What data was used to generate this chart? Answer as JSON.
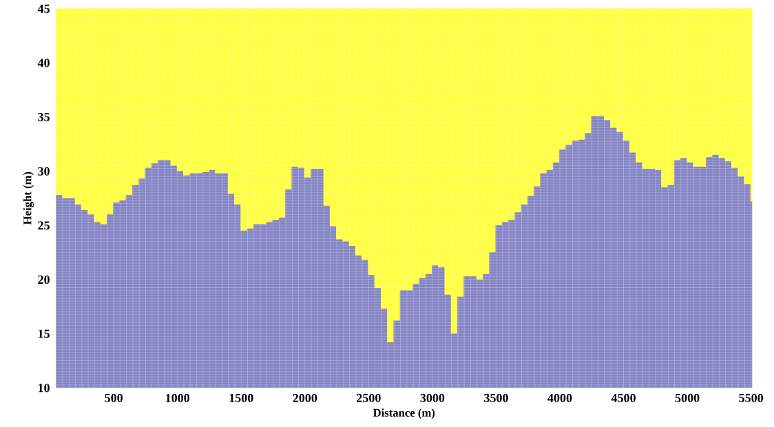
{
  "chart_data": {
    "type": "area",
    "xlabel": "Distance (m)",
    "ylabel": "Height (m)",
    "x": [
      45,
      95,
      145,
      195,
      245,
      295,
      345,
      395,
      445,
      495,
      545,
      595,
      645,
      695,
      745,
      795,
      845,
      895,
      945,
      995,
      1045,
      1095,
      1145,
      1195,
      1245,
      1295,
      1345,
      1395,
      1445,
      1495,
      1545,
      1595,
      1645,
      1695,
      1745,
      1795,
      1845,
      1895,
      1945,
      1995,
      2045,
      2095,
      2145,
      2195,
      2245,
      2295,
      2345,
      2395,
      2445,
      2495,
      2545,
      2595,
      2645,
      2695,
      2745,
      2795,
      2845,
      2895,
      2945,
      2995,
      3045,
      3095,
      3145,
      3195,
      3245,
      3295,
      3345,
      3395,
      3445,
      3495,
      3545,
      3595,
      3645,
      3695,
      3745,
      3795,
      3845,
      3895,
      3945,
      3995,
      4045,
      4095,
      4145,
      4195,
      4245,
      4295,
      4345,
      4395,
      4445,
      4495,
      4545,
      4595,
      4645,
      4695,
      4745,
      4795,
      4845,
      4895,
      4945,
      4995,
      5045,
      5095,
      5145,
      5195,
      5245,
      5295,
      5345,
      5395,
      5445,
      5495
    ],
    "series": [
      {
        "color": "#8484c4",
        "values": [
          27.8,
          27.5,
          27.5,
          26.9,
          26.4,
          26.0,
          25.3,
          25.1,
          26.0,
          27.1,
          27.3,
          27.8,
          28.7,
          29.3,
          30.3,
          30.7,
          31.0,
          31.0,
          30.5,
          30.0,
          29.6,
          29.8,
          29.8,
          29.9,
          30.1,
          29.8,
          29.8,
          27.9,
          26.9,
          24.5,
          24.7,
          25.1,
          25.1,
          25.3,
          25.5,
          25.7,
          28.3,
          30.4,
          30.3,
          29.4,
          30.2,
          30.2,
          26.8,
          24.9,
          23.7,
          23.5,
          23.1,
          22.2,
          21.8,
          20.4,
          19.2,
          17.3,
          14.2,
          16.2,
          19.0,
          19.0,
          19.6,
          20.1,
          20.5,
          21.3,
          21.1,
          18.6,
          15.0,
          18.4,
          20.3,
          20.3,
          20.0,
          20.5,
          22.5,
          25.0,
          25.3,
          25.5,
          26.2,
          26.9,
          27.7,
          28.6,
          29.8,
          30.1,
          30.8,
          32.0,
          32.4,
          32.8,
          32.9,
          33.5,
          35.1,
          35.1,
          34.7,
          34.0,
          33.6,
          32.8,
          31.7,
          30.8,
          30.2,
          30.2,
          30.1,
          28.5,
          28.7,
          31.0,
          31.2,
          30.8,
          30.4,
          30.4,
          31.3,
          31.5,
          31.2,
          30.9,
          30.3,
          29.5,
          28.8,
          27.2
        ]
      }
    ],
    "xlim": [
      45,
      5510
    ],
    "ylim": [
      10,
      45
    ],
    "xticks": [
      500,
      1000,
      1500,
      2000,
      2500,
      3000,
      3500,
      4000,
      4500,
      5000,
      5500
    ],
    "yticks": [
      10,
      15,
      20,
      25,
      30,
      35,
      40,
      45
    ],
    "grid": true
  }
}
